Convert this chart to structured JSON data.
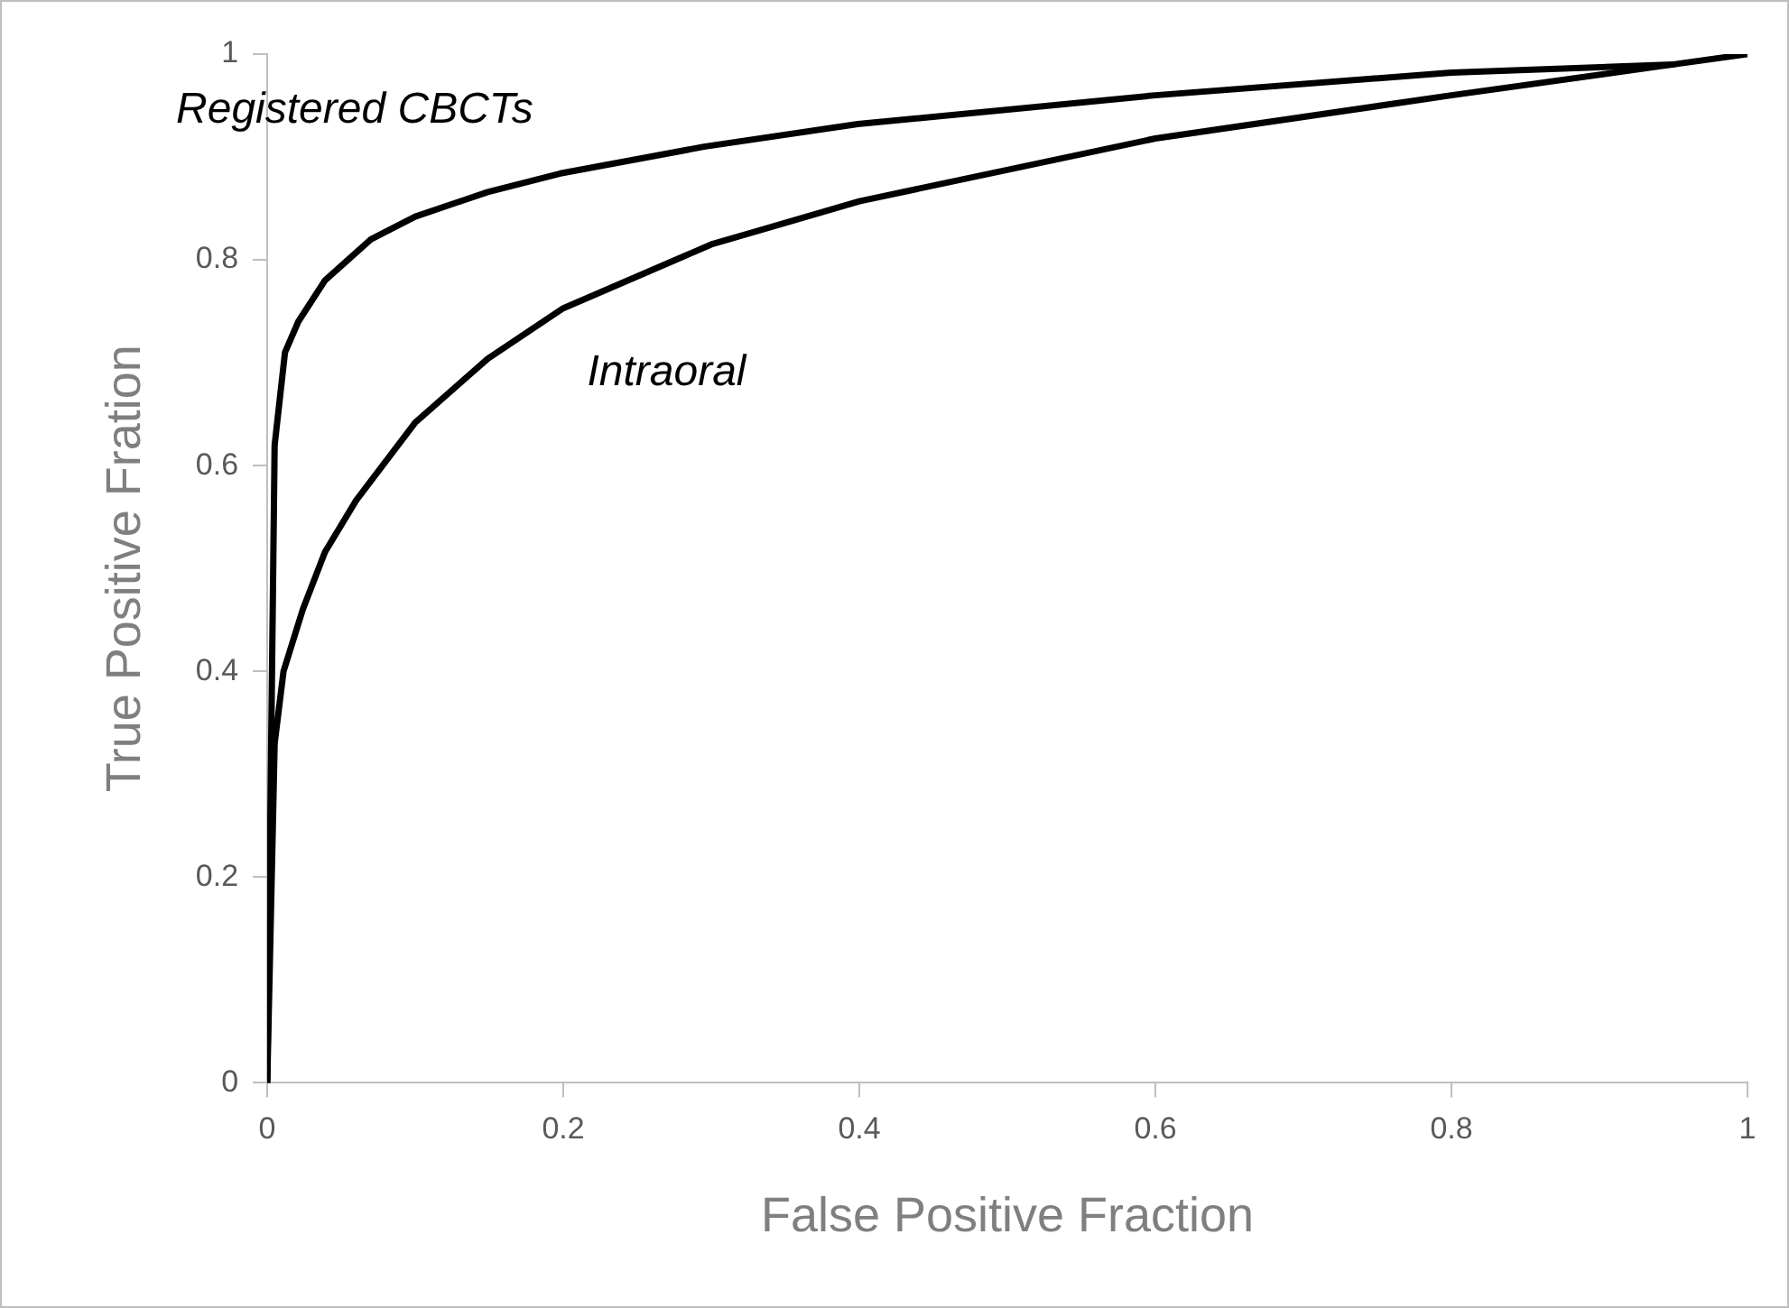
{
  "chart_data": {
    "type": "line",
    "xlabel": "False Positive Fraction",
    "ylabel": "True Positive Fration",
    "xlim": [
      0,
      1
    ],
    "ylim": [
      0,
      1
    ],
    "xticks": [
      0,
      0.2,
      0.4,
      0.6,
      0.8,
      1
    ],
    "yticks": [
      0,
      0.2,
      0.4,
      0.6,
      0.8,
      1
    ],
    "grid": false,
    "legend": false,
    "marker": "none",
    "line_style": "solid",
    "series": [
      {
        "name": "Registered CBCTs",
        "color": "#000000",
        "x": [
          0,
          0.005,
          0.012,
          0.021,
          0.039,
          0.07,
          0.1,
          0.149,
          0.198,
          0.295,
          0.399,
          0.6,
          0.8,
          0.95,
          1
        ],
        "values": [
          0,
          0.62,
          0.71,
          0.74,
          0.78,
          0.82,
          0.842,
          0.866,
          0.884,
          0.91,
          0.932,
          0.96,
          0.982,
          0.99,
          1
        ]
      },
      {
        "name": "Intraoral",
        "color": "#000000",
        "x": [
          0,
          0.005,
          0.011,
          0.024,
          0.039,
          0.06,
          0.1,
          0.149,
          0.2,
          0.3,
          0.4,
          0.6,
          0.8,
          0.95
        ],
        "values": [
          0,
          0.33,
          0.4,
          0.46,
          0.516,
          0.566,
          0.642,
          0.704,
          0.753,
          0.815,
          0.857,
          0.918,
          0.96,
          0.99
        ]
      }
    ]
  }
}
